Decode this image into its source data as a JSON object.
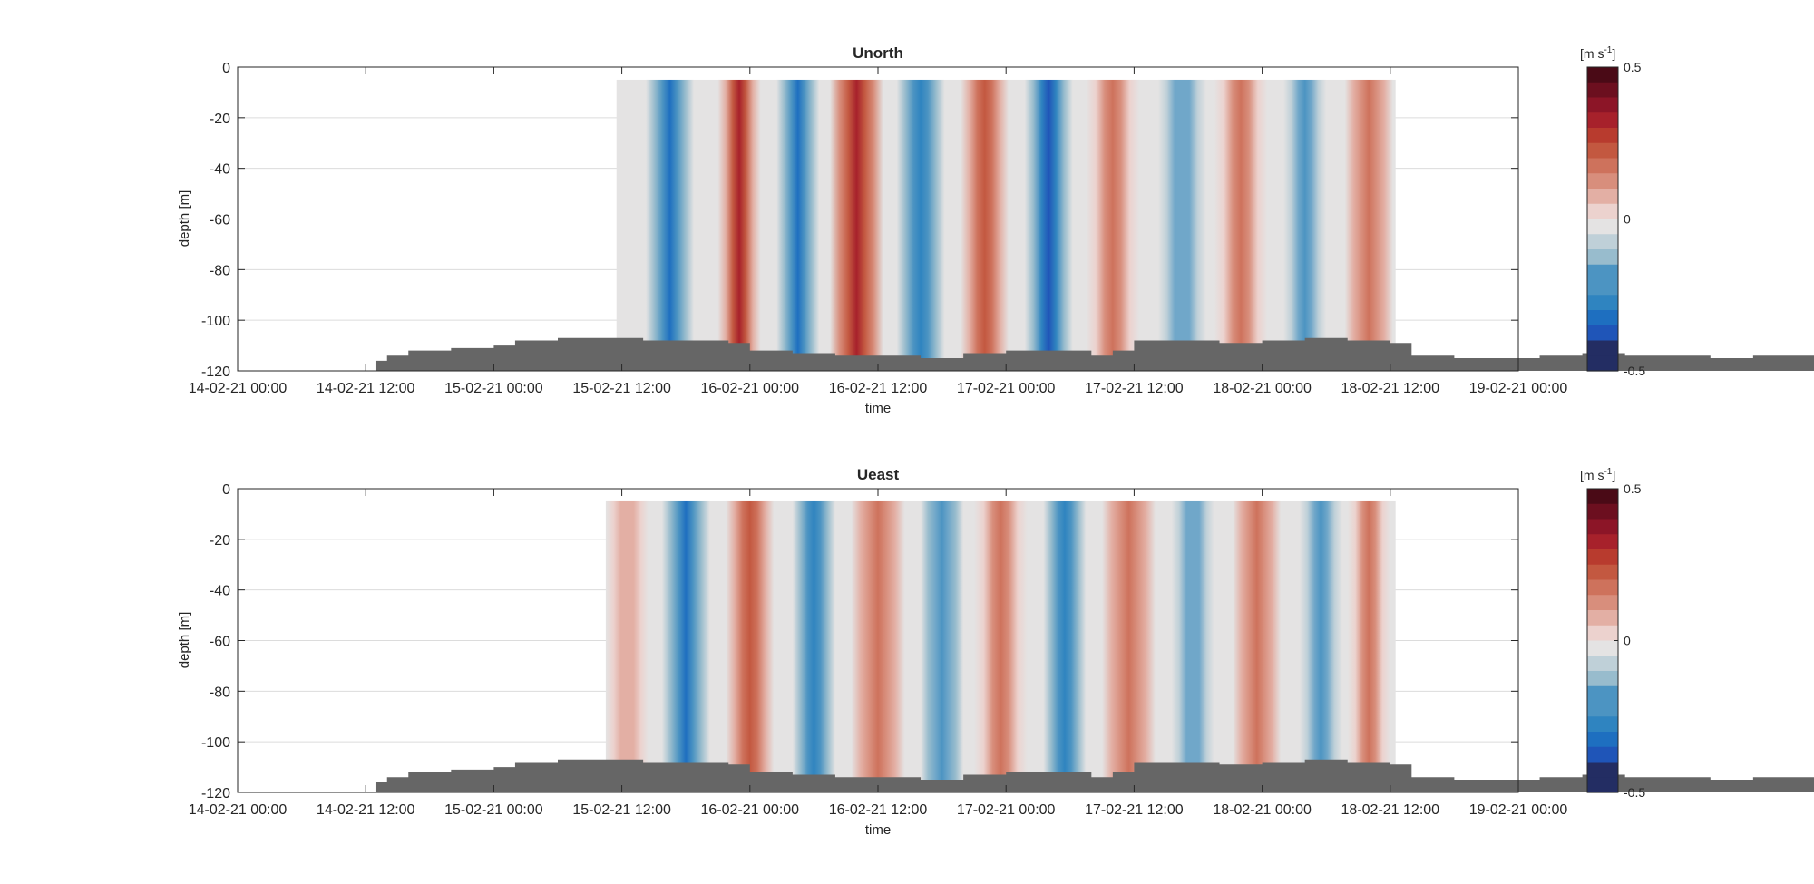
{
  "chart_data": [
    {
      "type": "heatmap",
      "title": "Unorth",
      "xlabel": "time",
      "ylabel": "depth [m]",
      "x_ticks": [
        "14-02-21 00:00",
        "14-02-21 12:00",
        "15-02-21 00:00",
        "15-02-21 12:00",
        "16-02-21 00:00",
        "16-02-21 12:00",
        "17-02-21 00:00",
        "17-02-21 12:00",
        "18-02-21 00:00",
        "18-02-21 12:00",
        "19-02-21 00:00"
      ],
      "x_range": [
        "14-02-21 00:00",
        "19-02-21 00:00"
      ],
      "y_ticks": [
        "0",
        "-20",
        "-40",
        "-60",
        "-80",
        "-100",
        "-120"
      ],
      "ylim": [
        -120,
        0
      ],
      "grid": "horizontal",
      "colorbar": {
        "label": "[m s",
        "label_exp": "-1",
        "label_end": "]",
        "ticks": [
          "0.5",
          "0",
          "-0.5"
        ],
        "range": [
          -0.5,
          0.5
        ],
        "levels": 20
      },
      "data_start_hour": 35.5,
      "data_end_hour": 108.5,
      "bands": [
        {
          "center_hour": 40.5,
          "width_hours": 4.5,
          "value": -0.28
        },
        {
          "center_hour": 47,
          "width_hours": 4,
          "value": 0.33
        },
        {
          "center_hour": 52.5,
          "width_hours": 4,
          "value": -0.28
        },
        {
          "center_hour": 58,
          "width_hours": 5,
          "value": 0.36
        },
        {
          "center_hour": 64,
          "width_hours": 4.5,
          "value": -0.24
        },
        {
          "center_hour": 70,
          "width_hours": 4.5,
          "value": 0.24
        },
        {
          "center_hour": 76,
          "width_hours": 4.5,
          "value": -0.33
        },
        {
          "center_hour": 82,
          "width_hours": 5,
          "value": 0.2
        },
        {
          "center_hour": 88.5,
          "width_hours": 4.5,
          "value": -0.17
        },
        {
          "center_hour": 94,
          "width_hours": 5,
          "value": 0.2
        },
        {
          "center_hour": 100,
          "width_hours": 4,
          "value": -0.2
        },
        {
          "center_hour": 106,
          "width_hours": 4.5,
          "value": 0.22
        }
      ],
      "seabed": [
        {
          "hour": 13,
          "depth": -116
        },
        {
          "hour": 14,
          "depth": -114
        },
        {
          "hour": 16,
          "depth": -112
        },
        {
          "hour": 20,
          "depth": -111
        },
        {
          "hour": 24,
          "depth": -110
        },
        {
          "hour": 26,
          "depth": -108
        },
        {
          "hour": 30,
          "depth": -107
        },
        {
          "hour": 36,
          "depth": -107
        },
        {
          "hour": 38,
          "depth": -108
        },
        {
          "hour": 41,
          "depth": -108
        },
        {
          "hour": 46,
          "depth": -109
        },
        {
          "hour": 48,
          "depth": -112
        },
        {
          "hour": 52,
          "depth": -113
        },
        {
          "hour": 56,
          "depth": -114
        },
        {
          "hour": 60,
          "depth": -114
        },
        {
          "hour": 64,
          "depth": -115
        },
        {
          "hour": 68,
          "depth": -113
        },
        {
          "hour": 72,
          "depth": -112
        },
        {
          "hour": 76,
          "depth": -112
        },
        {
          "hour": 80,
          "depth": -114
        },
        {
          "hour": 82,
          "depth": -112
        },
        {
          "hour": 84,
          "depth": -108
        },
        {
          "hour": 88,
          "depth": -108
        },
        {
          "hour": 92,
          "depth": -109
        },
        {
          "hour": 96,
          "depth": -108
        },
        {
          "hour": 100,
          "depth": -107
        },
        {
          "hour": 104,
          "depth": -108
        },
        {
          "hour": 106,
          "depth": -108
        },
        {
          "hour": 108,
          "depth": -109
        },
        {
          "hour": 110,
          "depth": -114
        },
        {
          "hour": 114,
          "depth": -115
        },
        {
          "hour": 118,
          "depth": -115
        },
        {
          "hour": 122,
          "depth": -114
        },
        {
          "hour": 126,
          "depth": -113
        },
        {
          "hour": 130,
          "depth": -114
        },
        {
          "hour": 134,
          "depth": -114
        },
        {
          "hour": 138,
          "depth": -115
        },
        {
          "hour": 142,
          "depth": -114
        },
        {
          "hour": 145,
          "depth": -114
        },
        {
          "hour": 149,
          "depth": -114
        }
      ]
    },
    {
      "type": "heatmap",
      "title": "Ueast",
      "xlabel": "time",
      "ylabel": "depth [m]",
      "x_ticks": [
        "14-02-21 00:00",
        "14-02-21 12:00",
        "15-02-21 00:00",
        "15-02-21 12:00",
        "16-02-21 00:00",
        "16-02-21 12:00",
        "17-02-21 00:00",
        "17-02-21 12:00",
        "18-02-21 00:00",
        "18-02-21 12:00",
        "19-02-21 00:00"
      ],
      "x_range": [
        "14-02-21 00:00",
        "19-02-21 00:00"
      ],
      "y_ticks": [
        "0",
        "-20",
        "-40",
        "-60",
        "-80",
        "-100",
        "-120"
      ],
      "ylim": [
        -120,
        0
      ],
      "grid": "horizontal",
      "colorbar": {
        "label": "[m s",
        "label_exp": "-1",
        "label_end": "]",
        "ticks": [
          "0.5",
          "0",
          "-0.5"
        ],
        "range": [
          -0.5,
          0.5
        ],
        "levels": 20
      },
      "data_start_hour": 34.5,
      "data_end_hour": 108.5,
      "bands": [
        {
          "center_hour": 36.5,
          "width_hours": 4,
          "value": 0.1
        },
        {
          "center_hour": 42,
          "width_hours": 4.5,
          "value": -0.28
        },
        {
          "center_hour": 48,
          "width_hours": 4.5,
          "value": 0.26
        },
        {
          "center_hour": 54,
          "width_hours": 4,
          "value": -0.24
        },
        {
          "center_hour": 60,
          "width_hours": 5,
          "value": 0.22
        },
        {
          "center_hour": 66,
          "width_hours": 4,
          "value": -0.22
        },
        {
          "center_hour": 71.5,
          "width_hours": 5,
          "value": 0.18
        },
        {
          "center_hour": 77.5,
          "width_hours": 4,
          "value": -0.24
        },
        {
          "center_hour": 83.5,
          "width_hours": 5,
          "value": 0.22
        },
        {
          "center_hour": 89.5,
          "width_hours": 4,
          "value": -0.17
        },
        {
          "center_hour": 95.5,
          "width_hours": 4.5,
          "value": 0.22
        },
        {
          "center_hour": 101.5,
          "width_hours": 4,
          "value": -0.2
        },
        {
          "center_hour": 106,
          "width_hours": 4,
          "value": 0.18
        }
      ],
      "seabed": [
        {
          "hour": 13,
          "depth": -116
        },
        {
          "hour": 14,
          "depth": -114
        },
        {
          "hour": 16,
          "depth": -112
        },
        {
          "hour": 20,
          "depth": -111
        },
        {
          "hour": 24,
          "depth": -110
        },
        {
          "hour": 26,
          "depth": -108
        },
        {
          "hour": 30,
          "depth": -107
        },
        {
          "hour": 36,
          "depth": -107
        },
        {
          "hour": 38,
          "depth": -108
        },
        {
          "hour": 41,
          "depth": -108
        },
        {
          "hour": 46,
          "depth": -109
        },
        {
          "hour": 48,
          "depth": -112
        },
        {
          "hour": 52,
          "depth": -113
        },
        {
          "hour": 56,
          "depth": -114
        },
        {
          "hour": 60,
          "depth": -114
        },
        {
          "hour": 64,
          "depth": -115
        },
        {
          "hour": 68,
          "depth": -113
        },
        {
          "hour": 72,
          "depth": -112
        },
        {
          "hour": 76,
          "depth": -112
        },
        {
          "hour": 80,
          "depth": -114
        },
        {
          "hour": 82,
          "depth": -112
        },
        {
          "hour": 84,
          "depth": -108
        },
        {
          "hour": 88,
          "depth": -108
        },
        {
          "hour": 92,
          "depth": -109
        },
        {
          "hour": 96,
          "depth": -108
        },
        {
          "hour": 100,
          "depth": -107
        },
        {
          "hour": 104,
          "depth": -108
        },
        {
          "hour": 106,
          "depth": -108
        },
        {
          "hour": 108,
          "depth": -109
        },
        {
          "hour": 110,
          "depth": -114
        },
        {
          "hour": 114,
          "depth": -115
        },
        {
          "hour": 118,
          "depth": -115
        },
        {
          "hour": 122,
          "depth": -114
        },
        {
          "hour": 126,
          "depth": -113
        },
        {
          "hour": 130,
          "depth": -114
        },
        {
          "hour": 134,
          "depth": -114
        },
        {
          "hour": 138,
          "depth": -115
        },
        {
          "hour": 142,
          "depth": -114
        },
        {
          "hour": 145,
          "depth": -114
        },
        {
          "hour": 149,
          "depth": -114
        }
      ]
    }
  ],
  "colors": {
    "seabed": "#666666",
    "colormap": [
      "#1c1c47",
      "#232d63",
      "#263e8c",
      "#1f55b8",
      "#1e6fc0",
      "#2f84c0",
      "#4c94c2",
      "#70a7c9",
      "#98bccd",
      "#bfd0d8",
      "#e4e3e3",
      "#ecd2ce",
      "#e3afa4",
      "#d88e7c",
      "#ce725c",
      "#c35840",
      "#b83b2e",
      "#a7212b",
      "#8c1527",
      "#6c0f1f",
      "#4a0a16"
    ]
  }
}
